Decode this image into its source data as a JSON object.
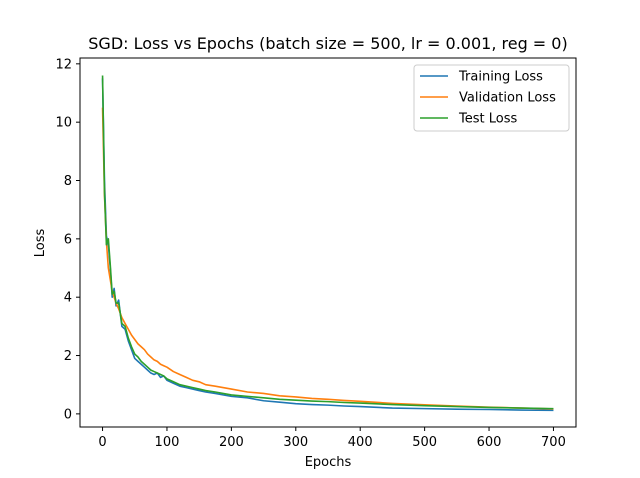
{
  "chart_data": {
    "type": "line",
    "title": "SGD: Loss vs Epochs (batch size = 500, lr = 0.001, reg = 0)",
    "xlabel": "Epochs",
    "ylabel": "Loss",
    "xlim": [
      -35,
      735
    ],
    "ylim": [
      -0.45,
      12.2
    ],
    "xticks": [
      0,
      100,
      200,
      300,
      400,
      500,
      600,
      700
    ],
    "yticks": [
      0,
      2,
      4,
      6,
      8,
      10,
      12
    ],
    "grid": false,
    "legend": "top-right",
    "series": [
      {
        "name": "Training Loss",
        "color": "#1f77b4",
        "x": [
          0,
          3,
          6,
          9,
          12,
          15,
          18,
          21,
          25,
          30,
          35,
          40,
          45,
          50,
          55,
          60,
          65,
          70,
          75,
          80,
          85,
          90,
          95,
          100,
          110,
          120,
          130,
          140,
          150,
          160,
          175,
          200,
          225,
          250,
          275,
          300,
          325,
          350,
          375,
          400,
          450,
          500,
          550,
          600,
          650,
          700
        ],
        "y": [
          11.5,
          8.0,
          6.1,
          5.8,
          5.0,
          4.0,
          4.3,
          3.7,
          3.9,
          3.0,
          2.9,
          2.5,
          2.2,
          1.9,
          1.8,
          1.7,
          1.6,
          1.5,
          1.4,
          1.35,
          1.4,
          1.25,
          1.3,
          1.15,
          1.05,
          0.95,
          0.9,
          0.85,
          0.8,
          0.75,
          0.7,
          0.6,
          0.55,
          0.45,
          0.4,
          0.35,
          0.32,
          0.3,
          0.27,
          0.25,
          0.2,
          0.18,
          0.16,
          0.15,
          0.13,
          0.12
        ]
      },
      {
        "name": "Validation Loss",
        "color": "#ff7f0e",
        "x": [
          0,
          3,
          6,
          9,
          12,
          15,
          18,
          21,
          25,
          30,
          35,
          40,
          45,
          50,
          55,
          60,
          65,
          70,
          75,
          80,
          85,
          90,
          95,
          100,
          110,
          120,
          130,
          140,
          150,
          160,
          175,
          200,
          225,
          250,
          275,
          300,
          325,
          350,
          375,
          400,
          450,
          500,
          550,
          600,
          650,
          700
        ],
        "y": [
          10.5,
          7.5,
          5.9,
          5.0,
          4.6,
          4.2,
          4.0,
          3.8,
          3.6,
          3.3,
          3.1,
          2.9,
          2.7,
          2.55,
          2.4,
          2.3,
          2.2,
          2.05,
          1.95,
          1.85,
          1.8,
          1.7,
          1.65,
          1.6,
          1.45,
          1.35,
          1.25,
          1.15,
          1.1,
          1.0,
          0.95,
          0.85,
          0.75,
          0.7,
          0.62,
          0.58,
          0.53,
          0.5,
          0.46,
          0.43,
          0.36,
          0.31,
          0.27,
          0.23,
          0.2,
          0.17
        ]
      },
      {
        "name": "Test Loss",
        "color": "#2ca02c",
        "x": [
          0,
          3,
          6,
          9,
          12,
          15,
          18,
          21,
          25,
          30,
          35,
          40,
          45,
          50,
          55,
          60,
          65,
          70,
          75,
          80,
          85,
          90,
          95,
          100,
          110,
          120,
          130,
          140,
          150,
          160,
          175,
          200,
          225,
          250,
          275,
          300,
          325,
          350,
          375,
          400,
          450,
          500,
          550,
          600,
          650,
          700
        ],
        "y": [
          11.6,
          7.6,
          5.8,
          6.0,
          5.1,
          4.1,
          4.2,
          3.8,
          3.8,
          3.1,
          3.0,
          2.6,
          2.3,
          2.05,
          1.95,
          1.8,
          1.7,
          1.6,
          1.5,
          1.45,
          1.4,
          1.35,
          1.3,
          1.2,
          1.1,
          1.0,
          0.95,
          0.9,
          0.85,
          0.8,
          0.75,
          0.65,
          0.6,
          0.55,
          0.5,
          0.47,
          0.44,
          0.42,
          0.39,
          0.37,
          0.32,
          0.28,
          0.25,
          0.22,
          0.2,
          0.18
        ]
      }
    ]
  }
}
